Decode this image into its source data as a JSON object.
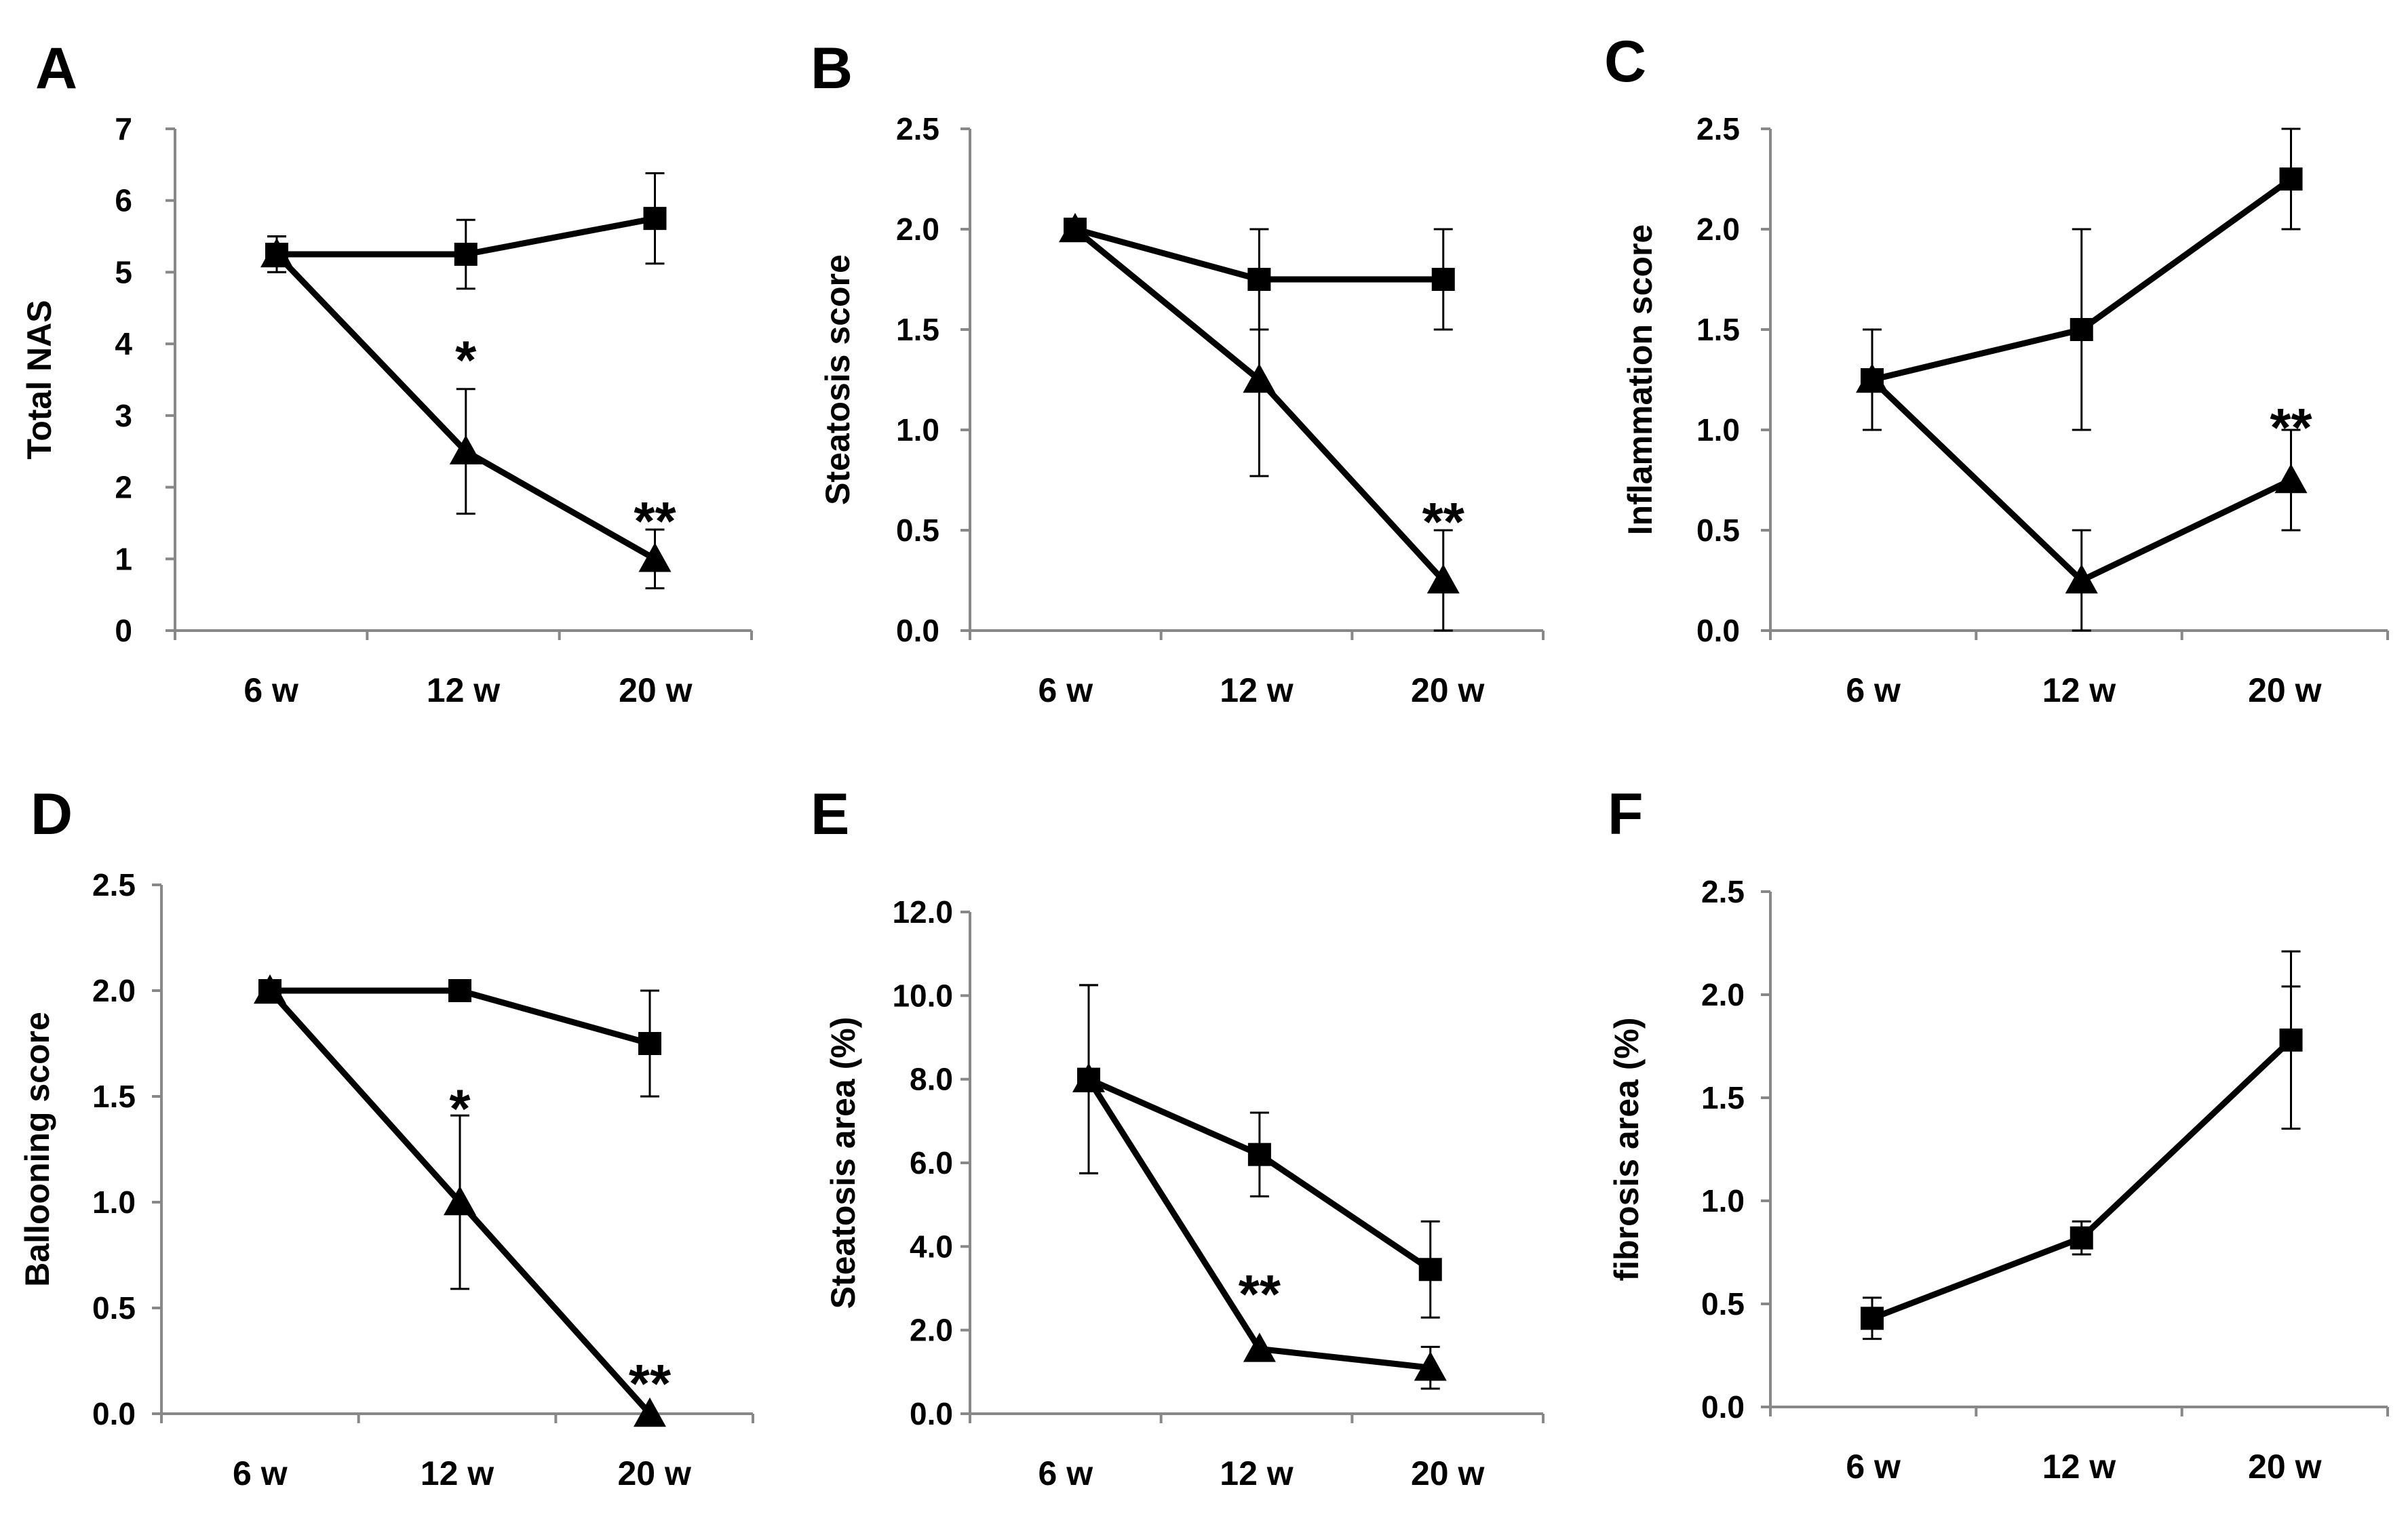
{
  "chart_data": [
    {
      "type": "line",
      "panel": "A",
      "ylabel": "Total NAS",
      "ylim": [
        0,
        7
      ],
      "yticks": [
        "0",
        "1",
        "2",
        "3",
        "4",
        "5",
        "6",
        "7"
      ],
      "categories": [
        "6 w",
        "12 w",
        "20 w"
      ],
      "series": [
        {
          "name": "square",
          "marker": "square",
          "values": [
            5.25,
            5.25,
            5.75
          ],
          "errors": [
            0.25,
            0.48,
            0.63
          ]
        },
        {
          "name": "triangle",
          "marker": "triangle",
          "values": [
            5.25,
            2.5,
            1.0
          ],
          "errors": [
            0.25,
            0.87,
            0.41
          ]
        }
      ],
      "annotations": [
        {
          "text": "*",
          "x": 1,
          "y": 3.8
        },
        {
          "text": "**",
          "x": 2,
          "y": 1.55
        }
      ]
    },
    {
      "type": "line",
      "panel": "B",
      "ylabel": "Steatosis score",
      "ylim": [
        0,
        2.5
      ],
      "yticks": [
        "0.0",
        "0.5",
        "1.0",
        "1.5",
        "2.0",
        "2.5"
      ],
      "categories": [
        "6 w",
        "12 w",
        "20 w"
      ],
      "series": [
        {
          "name": "square",
          "marker": "square",
          "values": [
            2.0,
            1.75,
            1.75
          ],
          "errors": [
            0,
            0.25,
            0.25
          ]
        },
        {
          "name": "triangle",
          "marker": "triangle",
          "values": [
            2.0,
            1.25,
            0.25
          ],
          "errors": [
            0,
            0.48,
            0.25
          ]
        }
      ],
      "annotations": [
        {
          "text": "**",
          "x": 2,
          "y": 0.55
        }
      ]
    },
    {
      "type": "line",
      "panel": "C",
      "ylabel": "Inflammation score",
      "ylim": [
        0,
        2.5
      ],
      "yticks": [
        "0.0",
        "0.5",
        "1.0",
        "1.5",
        "2.0",
        "2.5"
      ],
      "categories": [
        "6 w",
        "12 w",
        "20 w"
      ],
      "series": [
        {
          "name": "square",
          "marker": "square",
          "values": [
            1.25,
            1.5,
            2.25
          ],
          "errors": [
            0.25,
            0.5,
            0.25
          ]
        },
        {
          "name": "triangle",
          "marker": "triangle",
          "values": [
            1.25,
            0.25,
            0.75
          ],
          "errors": [
            0.25,
            0.25,
            0.25
          ]
        }
      ],
      "annotations": [
        {
          "text": "**",
          "x": 2,
          "y": 1.02
        }
      ]
    },
    {
      "type": "line",
      "panel": "D",
      "ylabel": "Ballooning score",
      "ylim": [
        0,
        2.5
      ],
      "yticks": [
        "0.0",
        "0.5",
        "1.0",
        "1.5",
        "2.0",
        "2.5"
      ],
      "categories": [
        "6 w",
        "12 w",
        "20 w"
      ],
      "series": [
        {
          "name": "square",
          "marker": "square",
          "values": [
            2.0,
            2.0,
            1.75
          ],
          "errors": [
            0,
            0,
            0.25
          ]
        },
        {
          "name": "triangle",
          "marker": "triangle",
          "values": [
            2.0,
            1.0,
            0.0
          ],
          "errors": [
            0,
            0.41,
            0
          ]
        }
      ],
      "annotations": [
        {
          "text": "*",
          "x": 1,
          "y": 1.45
        },
        {
          "text": "**",
          "x": 2,
          "y": 0.15
        }
      ]
    },
    {
      "type": "line",
      "panel": "E",
      "ylabel": "Steatosis area (%)",
      "ylim": [
        0,
        12
      ],
      "yticks": [
        "0.0",
        "2.0",
        "4.0",
        "6.0",
        "8.0",
        "10.0",
        "12.0"
      ],
      "categories": [
        "6 w",
        "12 w",
        "20 w"
      ],
      "series": [
        {
          "name": "square",
          "marker": "square",
          "values": [
            8.0,
            6.2,
            3.45
          ],
          "errors": [
            2.25,
            1.0,
            1.15
          ]
        },
        {
          "name": "triangle",
          "marker": "triangle",
          "values": [
            8.0,
            1.55,
            1.1
          ],
          "errors": [
            2.25,
            0,
            0.5
          ]
        }
      ],
      "annotations": [
        {
          "text": "**",
          "x": 1,
          "y": 2.9
        }
      ]
    },
    {
      "type": "line",
      "panel": "F",
      "ylabel": "fibrosis area (%)",
      "ylim": [
        0,
        2.5
      ],
      "yticks": [
        "0.0",
        "0.5",
        "1.0",
        "1.5",
        "2.0",
        "2.5"
      ],
      "categories": [
        "6 w",
        "12 w",
        "20 w"
      ],
      "series": [
        {
          "name": "square",
          "marker": "square",
          "values": [
            0.43,
            0.82,
            1.78
          ],
          "errors": [
            0.1,
            0.08,
            0.43
          ],
          "errors_alt": [
            0,
            0,
            0.26
          ]
        }
      ],
      "annotations": []
    }
  ]
}
